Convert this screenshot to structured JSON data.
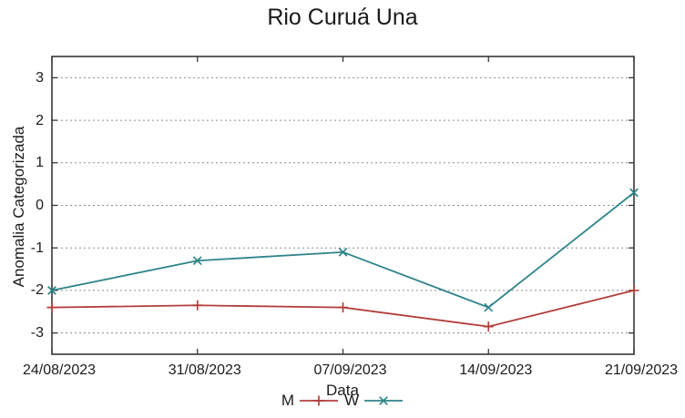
{
  "chart_data": {
    "type": "line",
    "title": "Rio Curuá Una",
    "xlabel": "Data",
    "ylabel": "Anomalia Categorizada",
    "categories": [
      "24/08/2023",
      "31/08/2023",
      "07/09/2023",
      "14/09/2023",
      "21/09/2023"
    ],
    "series": [
      {
        "name": "M",
        "marker": "plus",
        "color": "#b23f3b",
        "values": [
          -2.4,
          -2.35,
          -2.4,
          -2.85,
          -2.0
        ]
      },
      {
        "name": "W",
        "marker": "cross",
        "color": "#2e8489",
        "values": [
          -2.0,
          -1.3,
          -1.1,
          -2.4,
          0.3
        ]
      }
    ],
    "ylim": [
      -3.5,
      3.5
    ],
    "yticks": [
      3,
      2,
      1,
      0,
      -1,
      -2,
      -3
    ],
    "grid": "horizontal-dotted",
    "legend_position": "bottom-center"
  },
  "colors": {
    "background": "#ffffff",
    "axis": "#2a2a2a",
    "grid": "#8c8c8c",
    "text": "#1b1b1b"
  }
}
